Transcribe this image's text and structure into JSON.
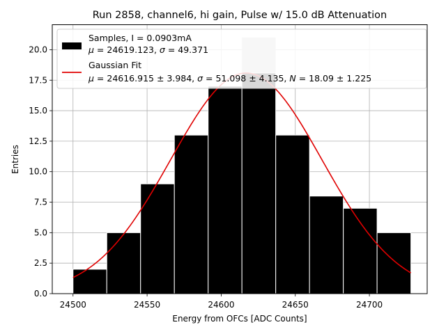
{
  "chart_data": {
    "type": "bar",
    "title": "Run 2858, channel6, hi gain, Pulse w/ 15.0 dB Attenuation",
    "xlabel": "Energy from OFCs [ADC Counts]",
    "ylabel": "Entries",
    "xlim": [
      24486,
      24739
    ],
    "ylim": [
      0,
      22.05
    ],
    "grid": true,
    "legend_position": "upper-left",
    "xticks": [
      24500,
      24550,
      24600,
      24650,
      24700
    ],
    "xtick_labels": [
      "24500",
      "24550",
      "24600",
      "24650",
      "24700"
    ],
    "yticks": [
      0,
      2.5,
      5,
      7.5,
      10,
      12.5,
      15,
      17.5,
      20
    ],
    "ytick_labels": [
      "0.0",
      "2.5",
      "5.0",
      "7.5",
      "10.0",
      "12.5",
      "15.0",
      "17.5",
      "20.0"
    ],
    "histogram": {
      "bin_edges": [
        24500,
        24522.8,
        24545.6,
        24568.4,
        24591.2,
        24614,
        24636.8,
        24659.6,
        24682.4,
        24705.2,
        24728
      ],
      "counts": [
        2,
        5,
        9,
        13,
        17,
        21,
        13,
        8,
        7,
        5
      ],
      "color": "#000000",
      "edge_color": "#ffffff"
    },
    "highlight_bar": {
      "bin_index": 5,
      "color": "#c8c8c8"
    },
    "fit": {
      "mu": 24616.915,
      "sigma": 51.098,
      "N": 18.09,
      "x_range": [
        24500,
        24728
      ],
      "color": "#e00000"
    },
    "legend": {
      "samples_line1": "Samples, I = 0.0903mA",
      "samples_mu": "μ",
      "samples_eq1": " = 24619.123, ",
      "samples_sigma": "σ",
      "samples_eq2": " = 49.371",
      "fit_line1": "Gaussian Fit",
      "fit_mu": "μ",
      "fit_eq1": " = 24616.915 ± 3.984, ",
      "fit_sigma": "σ",
      "fit_eq2": " = 51.098 ± 4.135, ",
      "fit_N": "N",
      "fit_eq3": " = 18.09 ± 1.225"
    }
  }
}
